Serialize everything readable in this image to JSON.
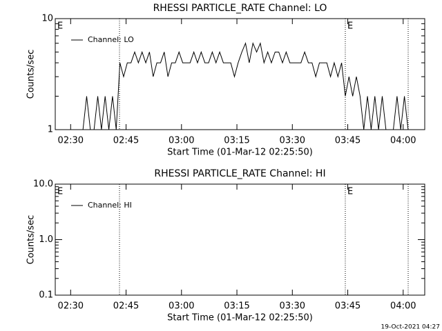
{
  "chart_data": [
    {
      "type": "line",
      "title": "RHESSI PARTICLE_RATE Channel: LO",
      "xlabel": "Start Time (01-Mar-12 02:25:50)",
      "ylabel": "Counts/sec",
      "xlim": [
        0,
        6000
      ],
      "xticks": [
        {
          "value": 250,
          "label": "02:30"
        },
        {
          "value": 1150,
          "label": "02:45"
        },
        {
          "value": 2050,
          "label": "03:00"
        },
        {
          "value": 2950,
          "label": "03:15"
        },
        {
          "value": 3850,
          "label": "03:30"
        },
        {
          "value": 4750,
          "label": "03:45"
        },
        {
          "value": 5650,
          "label": "04:00"
        }
      ],
      "ylim": [
        1,
        10
      ],
      "yscale": "log",
      "yticks": [
        1,
        10
      ],
      "yminorticks": [
        2,
        3,
        4,
        5,
        6,
        7,
        8,
        9
      ],
      "vlines": [
        1043,
        4710,
        5731
      ],
      "annotations": [
        {
          "text": "E",
          "x": 0
        },
        {
          "text": "E",
          "x": 4710
        }
      ],
      "legend": "upper left",
      "x": [
        150,
        210,
        270,
        330,
        390,
        450,
        510,
        570,
        630,
        690,
        750,
        810,
        870,
        930,
        990,
        1050,
        1110,
        1170,
        1230,
        1290,
        1350,
        1410,
        1470,
        1530,
        1590,
        1650,
        1710,
        1770,
        1830,
        1890,
        1950,
        2010,
        2070,
        2130,
        2190,
        2250,
        2310,
        2370,
        2430,
        2490,
        2550,
        2610,
        2670,
        2730,
        2790,
        2850,
        2910,
        2970,
        3030,
        3090,
        3150,
        3210,
        3270,
        3330,
        3390,
        3450,
        3510,
        3570,
        3630,
        3690,
        3750,
        3810,
        3870,
        3930,
        3990,
        4050,
        4110,
        4170,
        4230,
        4290,
        4350,
        4410,
        4470,
        4530,
        4590,
        4650,
        4710,
        4770,
        4830,
        4890,
        4950,
        5010,
        5070,
        5130,
        5190,
        5250,
        5310,
        5370,
        5430,
        5490,
        5550,
        5610,
        5670,
        5730
      ],
      "series": [
        {
          "name": "Channel: LO",
          "color": "#000000",
          "values": [
            1,
            1,
            1,
            1,
            1,
            1,
            2,
            1,
            1,
            2,
            1,
            2,
            1,
            2,
            1,
            4,
            3,
            4,
            4,
            5,
            4,
            5,
            4,
            5,
            3,
            4,
            4,
            5,
            3,
            4,
            4,
            5,
            4,
            4,
            4,
            5,
            4,
            5,
            4,
            4,
            5,
            4,
            5,
            4,
            4,
            4,
            3,
            4,
            5,
            6,
            4,
            6,
            5,
            6,
            4,
            5,
            4,
            5,
            5,
            4,
            5,
            4,
            4,
            4,
            4,
            5,
            4,
            4,
            3,
            4,
            4,
            4,
            3,
            4,
            3,
            4,
            2,
            3,
            2,
            3,
            2,
            1,
            2,
            1,
            2,
            1,
            2,
            1,
            1,
            1,
            2,
            1,
            2,
            1
          ]
        }
      ]
    },
    {
      "type": "line",
      "title": "RHESSI PARTICLE_RATE Channel: HI",
      "xlabel": "Start Time (01-Mar-12 02:25:50)",
      "ylabel": "Counts/sec",
      "xlim": [
        0,
        6000
      ],
      "xticks": [
        {
          "value": 250,
          "label": "02:30"
        },
        {
          "value": 1150,
          "label": "02:45"
        },
        {
          "value": 2050,
          "label": "03:00"
        },
        {
          "value": 2950,
          "label": "03:15"
        },
        {
          "value": 3850,
          "label": "03:30"
        },
        {
          "value": 4750,
          "label": "03:45"
        },
        {
          "value": 5650,
          "label": "04:00"
        }
      ],
      "ylim": [
        0.1,
        10
      ],
      "yscale": "log",
      "yticks": [
        {
          "value": 0.1,
          "label": "0.1"
        },
        {
          "value": 1,
          "label": "1.0"
        },
        {
          "value": 10,
          "label": "10.0"
        }
      ],
      "yminorticks": [
        0.2,
        0.3,
        0.4,
        0.5,
        0.6,
        0.7,
        0.8,
        0.9,
        2,
        3,
        4,
        5,
        6,
        7,
        8,
        9
      ],
      "vlines": [
        1043,
        4710,
        5731
      ],
      "annotations": [
        {
          "text": "E",
          "x": 0
        },
        {
          "text": "E",
          "x": 4710
        }
      ],
      "legend": "upper left",
      "x": [],
      "series": [
        {
          "name": "Channel: HI",
          "color": "#000000",
          "values": []
        }
      ]
    }
  ],
  "footer_text": "19-Oct-2021 04:27"
}
